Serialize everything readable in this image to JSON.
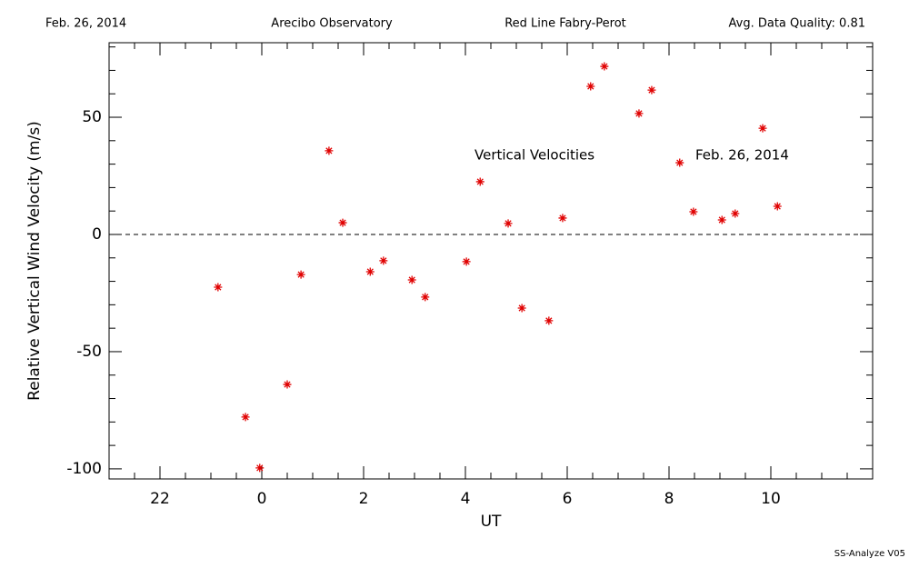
{
  "header": {
    "date": "Feb. 26, 2014",
    "site": "Arecibo Observatory",
    "instrument": "Red Line Fabry-Perot",
    "quality": "Avg. Data Quality: 0.81"
  },
  "footer": "SS-Analyze V05",
  "chart_data": {
    "type": "scatter",
    "x_label": "UT",
    "y_label": "Relative Vertical Wind Velocity (m/s)",
    "annotations": [
      "Vertical Velocities",
      "Feb. 26, 2014"
    ],
    "xlim": [
      -3,
      12
    ],
    "ylim": [
      -104.3,
      81.8
    ],
    "xticks": [
      {
        "value": -2,
        "label": "22"
      },
      0,
      2,
      4,
      6,
      8,
      10
    ],
    "yticks": [
      -100,
      -50,
      0,
      50
    ],
    "xminorticks": [
      -2.5,
      -1.5,
      -1,
      -0.5,
      0.5,
      1,
      1.5,
      2.5,
      3,
      3.5,
      4.5,
      5,
      5.5,
      6.5,
      7,
      7.5,
      8.5,
      9,
      9.5,
      10.5,
      11,
      11.5
    ],
    "yminorticks": [
      -90,
      -80,
      -70,
      -60,
      -40,
      -30,
      -20,
      -10,
      10,
      20,
      30,
      40,
      60,
      70,
      80
    ],
    "zero_line": true,
    "color": "#e00000",
    "x": [
      -0.86,
      -0.32,
      -0.04,
      0.5,
      0.77,
      1.32,
      1.59,
      2.13,
      2.39,
      2.95,
      3.21,
      4.02,
      4.29,
      4.84,
      5.11,
      5.64,
      5.91,
      6.46,
      6.73,
      7.41,
      7.66,
      8.21,
      8.48,
      9.04,
      9.3,
      9.84,
      10.13
    ],
    "values": [
      -22.5,
      -77.9,
      -99.6,
      -64,
      -17.1,
      35.7,
      5.0,
      -15.9,
      -11.2,
      -19.4,
      -26.7,
      -11.6,
      22.5,
      4.7,
      -31.4,
      -36.8,
      7.0,
      63.2,
      71.7,
      51.6,
      61.6,
      30.6,
      9.7,
      6.2,
      8.9,
      45.3,
      12.0
    ]
  }
}
